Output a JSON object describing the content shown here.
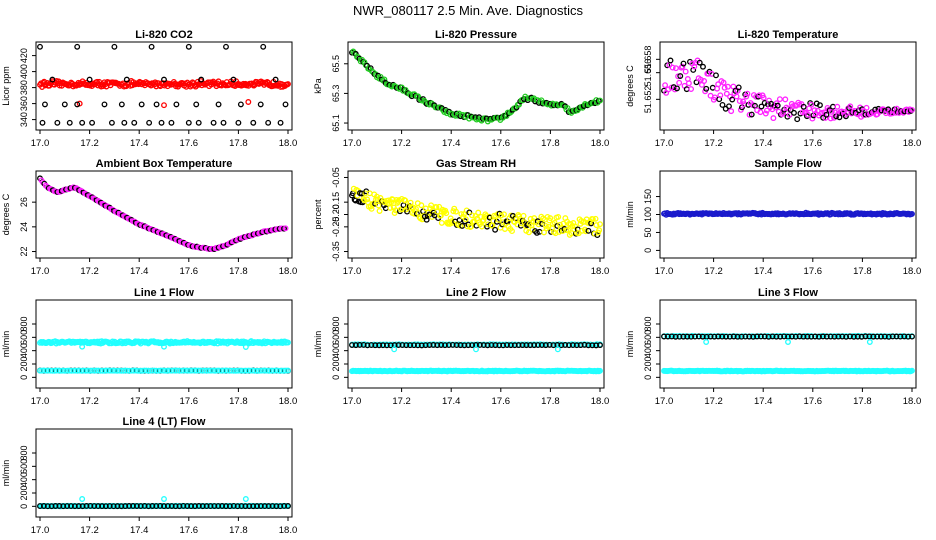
{
  "page_title": "NWR_080117  2.5 Min. Ave. Diagnostics",
  "colors": {
    "black": "#000000",
    "red": "#ff0000",
    "green": "#22cc22",
    "magenta": "#ff22ff",
    "yellow": "#ffff00",
    "blue": "#1a1acc",
    "cyan": "#22ffff"
  },
  "chart_data": [
    {
      "id": "li820-co2",
      "type": "scatter",
      "title": "Li-820 CO2",
      "ylabel": "Licor ppm",
      "xlim": [
        17.0,
        18.0
      ],
      "ylim": [
        332,
        432
      ],
      "xticks": [
        17.0,
        17.2,
        17.4,
        17.6,
        17.8,
        18.0
      ],
      "xtick_labels": [
        "17.0",
        "17.2",
        "17.4",
        "17.6",
        "17.8",
        "18.0"
      ],
      "yticks": [
        340,
        360,
        380,
        400,
        420
      ],
      "ytick_labels": [
        "340",
        "360",
        "380",
        "400",
        "420"
      ],
      "series": [
        {
          "name": "co2 band",
          "kind": "band",
          "color": "#ff0000",
          "x": [
            17.0,
            18.0
          ],
          "y_low": 382,
          "y_high": 387,
          "jitter": 1.5,
          "count": 240
        },
        {
          "name": "co2 outliers",
          "kind": "points",
          "color": "#ff0000",
          "x": [
            17.16,
            17.5,
            17.84
          ],
          "y": [
            360,
            358,
            362
          ]
        },
        {
          "name": "co2 black",
          "kind": "points",
          "color": "#000000",
          "x": [
            17.01,
            17.07,
            17.12,
            17.17,
            17.21,
            17.29,
            17.34,
            17.38,
            17.44,
            17.49,
            17.53,
            17.6,
            17.64,
            17.7,
            17.74,
            17.8,
            17.86,
            17.92,
            17.97,
            17.02,
            17.1,
            17.15,
            17.26,
            17.33,
            17.41,
            17.47,
            17.55,
            17.63,
            17.72,
            17.81,
            17.89,
            17.99,
            17.05,
            17.2,
            17.35,
            17.5,
            17.65,
            17.78,
            17.95,
            17.0,
            17.15,
            17.3,
            17.45,
            17.6,
            17.75,
            17.9
          ],
          "y": [
            336,
            336,
            336,
            336,
            336,
            336,
            336,
            336,
            336,
            336,
            336,
            336,
            336,
            336,
            336,
            336,
            336,
            336,
            336,
            359,
            359,
            359,
            359,
            359,
            359,
            359,
            359,
            359,
            359,
            359,
            359,
            359,
            390,
            390,
            390,
            390,
            390,
            390,
            390,
            431,
            431,
            431,
            431,
            431,
            431,
            431
          ]
        }
      ]
    },
    {
      "id": "li820-pressure",
      "type": "scatter",
      "title": "Li-820 Pressure",
      "ylabel": "kPa",
      "xlim": [
        17.0,
        18.0
      ],
      "ylim": [
        65.08,
        65.62
      ],
      "xticks": [
        17.0,
        17.2,
        17.4,
        17.6,
        17.8,
        18.0
      ],
      "xtick_labels": [
        "17.0",
        "17.2",
        "17.4",
        "17.6",
        "17.8",
        "18.0"
      ],
      "yticks": [
        65.1,
        65.3,
        65.5
      ],
      "ytick_labels": [
        "65.1",
        "65.3",
        "65.5"
      ],
      "series": [
        {
          "name": "pressure",
          "kind": "curve",
          "color": "#22cc22",
          "edge": "#000000",
          "jitter": 0.012,
          "count": 200,
          "x": [
            17.0,
            17.05,
            17.1,
            17.15,
            17.2,
            17.3,
            17.4,
            17.45,
            17.5,
            17.55,
            17.6,
            17.65,
            17.7,
            17.75,
            17.8,
            17.85,
            17.88,
            17.9,
            17.95,
            18.0
          ],
          "y": [
            65.58,
            65.5,
            65.42,
            65.36,
            65.33,
            65.24,
            65.16,
            65.15,
            65.13,
            65.12,
            65.13,
            65.19,
            65.27,
            65.25,
            65.22,
            65.23,
            65.17,
            65.19,
            65.23,
            65.25
          ]
        }
      ]
    },
    {
      "id": "li820-temperature",
      "type": "scatter",
      "title": "Li-820 Temperature",
      "ylabel": "degrees C",
      "xlim": [
        17.0,
        18.0
      ],
      "ylim": [
        51.648,
        51.66
      ],
      "xticks": [
        17.0,
        17.2,
        17.4,
        17.6,
        17.8,
        18.0
      ],
      "xtick_labels": [
        "17.0",
        "17.2",
        "17.4",
        "17.6",
        "17.8",
        "18.0"
      ],
      "yticks": [
        51.652,
        51.656,
        51.658
      ],
      "ytick_labels": [
        "51.652",
        "51.656",
        "51.658"
      ],
      "series": [
        {
          "name": "temperature",
          "kind": "curve",
          "color": "#ff22ff",
          "edge": "#000000",
          "count": 230,
          "jitter_start": 0.0028,
          "jitter_end": 0.0002,
          "x": [
            17.0,
            17.1,
            17.15,
            17.2,
            17.25,
            17.3,
            17.4,
            17.5,
            17.6,
            17.8,
            18.0
          ],
          "y": [
            51.655,
            51.656,
            51.656,
            51.654,
            51.6525,
            51.652,
            51.651,
            51.6505,
            51.6502,
            51.6501,
            51.6503
          ]
        }
      ]
    },
    {
      "id": "ambient-box-temperature",
      "type": "scatter",
      "title": "Ambient Box Temperature",
      "ylabel": "degrees C",
      "xlim": [
        17.0,
        18.0
      ],
      "ylim": [
        21.8,
        28.2
      ],
      "xticks": [
        17.0,
        17.2,
        17.4,
        17.6,
        17.8,
        18.0
      ],
      "xtick_labels": [
        "17.0",
        "17.2",
        "17.4",
        "17.6",
        "17.8",
        "18.0"
      ],
      "yticks": [
        22,
        24,
        26
      ],
      "ytick_labels": [
        "22",
        "24",
        "26"
      ],
      "series": [
        {
          "name": "ambient",
          "kind": "curve",
          "color": "#ff22ff",
          "edge": "#000000",
          "jitter": 0.03,
          "count": 170,
          "x": [
            17.0,
            17.03,
            17.07,
            17.1,
            17.14,
            17.2,
            17.3,
            17.4,
            17.5,
            17.6,
            17.65,
            17.7,
            17.75,
            17.8,
            17.9,
            17.99
          ],
          "y": [
            27.9,
            27.2,
            26.8,
            27.0,
            27.2,
            26.5,
            25.3,
            24.2,
            23.4,
            22.5,
            22.3,
            22.2,
            22.5,
            23.0,
            23.6,
            23.9
          ]
        }
      ]
    },
    {
      "id": "gas-stream-rh",
      "type": "scatter",
      "title": "Gas Stream RH",
      "ylabel": "percent",
      "xlim": [
        17.0,
        18.0
      ],
      "ylim": [
        -0.36,
        -0.04
      ],
      "xticks": [
        17.0,
        17.2,
        17.4,
        17.6,
        17.8,
        18.0
      ],
      "xtick_labels": [
        "17.0",
        "17.2",
        "17.4",
        "17.6",
        "17.8",
        "18.0"
      ],
      "yticks": [
        -0.35,
        -0.25,
        -0.2,
        -0.15,
        -0.05
      ],
      "ytick_labels": [
        "-0.35",
        "-0.25",
        "-0.20",
        "-0.15",
        "-0.05"
      ],
      "series": [
        {
          "name": "rh",
          "kind": "curve",
          "color": "#ffff00",
          "edge": "#000000",
          "jitter": 0.035,
          "count": 280,
          "black_ratio": 0.22,
          "x": [
            17.0,
            17.1,
            17.2,
            17.3,
            17.4,
            17.5,
            17.6,
            17.7,
            17.8,
            17.9,
            18.0
          ],
          "y": [
            -0.12,
            -0.15,
            -0.17,
            -0.19,
            -0.21,
            -0.22,
            -0.23,
            -0.24,
            -0.24,
            -0.25,
            -0.25
          ]
        }
      ]
    },
    {
      "id": "sample-flow",
      "type": "scatter",
      "title": "Sample Flow",
      "ylabel": "ml/min",
      "xlim": [
        17.0,
        18.0
      ],
      "ylim": [
        -10,
        210
      ],
      "xticks": [
        17.0,
        17.2,
        17.4,
        17.6,
        17.8,
        18.0
      ],
      "xtick_labels": [
        "17.0",
        "17.2",
        "17.4",
        "17.6",
        "17.8",
        "18.0"
      ],
      "yticks": [
        0,
        50,
        100,
        150
      ],
      "ytick_labels": [
        "0",
        "50",
        "100",
        "150"
      ],
      "series": [
        {
          "name": "sample",
          "kind": "band",
          "color": "#1a1acc",
          "edge": "#000000",
          "x": [
            17.0,
            18.0
          ],
          "y_low": 100,
          "y_high": 104,
          "jitter": 1.0,
          "count": 230
        }
      ]
    },
    {
      "id": "line1-flow",
      "type": "scatter",
      "title": "Line 1 Flow",
      "ylabel": "ml/min",
      "xlim": [
        17.0,
        18.0
      ],
      "ylim": [
        -100,
        1100
      ],
      "xticks": [
        17.0,
        17.2,
        17.4,
        17.6,
        17.8,
        18.0
      ],
      "xtick_labels": [
        "17.0",
        "17.2",
        "17.4",
        "17.6",
        "17.8",
        "18.0"
      ],
      "yticks": [
        0,
        200,
        400,
        600,
        800
      ],
      "ytick_labels": [
        "0",
        "200",
        "400",
        "600",
        "800"
      ],
      "series": [
        {
          "name": "line1 cyan",
          "kind": "band",
          "color": "#22ffff",
          "x": [
            17.0,
            18.0
          ],
          "y_low": 510,
          "y_high": 540,
          "jitter": 6,
          "count": 230
        },
        {
          "name": "line1 cyan low",
          "kind": "points",
          "color": "#22ffff",
          "x": [
            17.17,
            17.5,
            17.83
          ],
          "y": [
            460,
            460,
            455
          ]
        },
        {
          "name": "line1 black",
          "kind": "band",
          "color": "#000000",
          "x": [
            17.0,
            18.0
          ],
          "y_low": 100,
          "y_high": 100,
          "jitter": 3,
          "count": 65,
          "hollow": true
        },
        {
          "name": "line1 cyan base",
          "kind": "band",
          "color": "#22ffff",
          "x": [
            17.0,
            18.0
          ],
          "y_low": 100,
          "y_high": 100,
          "jitter": 2,
          "count": 120
        }
      ]
    },
    {
      "id": "line2-flow",
      "type": "scatter",
      "title": "Line 2 Flow",
      "ylabel": "ml/min",
      "xlim": [
        17.0,
        18.0
      ],
      "ylim": [
        -100,
        1100
      ],
      "xticks": [
        17.0,
        17.2,
        17.4,
        17.6,
        17.8,
        18.0
      ],
      "xtick_labels": [
        "17.0",
        "17.2",
        "17.4",
        "17.6",
        "17.8",
        "18.0"
      ],
      "yticks": [
        0,
        200,
        400,
        600,
        800
      ],
      "ytick_labels": [
        "0",
        "200",
        "400",
        "600",
        "800"
      ],
      "series": [
        {
          "name": "line2 cyan base",
          "kind": "band",
          "color": "#22ffff",
          "x": [
            17.0,
            18.0
          ],
          "y_low": 90,
          "y_high": 100,
          "jitter": 2,
          "count": 230
        },
        {
          "name": "line2 cyan top",
          "kind": "band",
          "color": "#22ffff",
          "x": [
            17.0,
            18.0
          ],
          "y_low": 490,
          "y_high": 495,
          "jitter": 3,
          "count": 80
        },
        {
          "name": "line2 black",
          "kind": "band",
          "color": "#000000",
          "x": [
            17.0,
            18.0
          ],
          "y_low": 480,
          "y_high": 485,
          "jitter": 3,
          "count": 65,
          "hollow": true
        },
        {
          "name": "line2 cyan low",
          "kind": "points",
          "color": "#22ffff",
          "x": [
            17.17,
            17.5,
            17.83
          ],
          "y": [
            420,
            420,
            420
          ]
        }
      ]
    },
    {
      "id": "line3-flow",
      "type": "scatter",
      "title": "Line 3 Flow",
      "ylabel": "ml/min",
      "xlim": [
        17.0,
        18.0
      ],
      "ylim": [
        -100,
        1100
      ],
      "xticks": [
        17.0,
        17.2,
        17.4,
        17.6,
        17.8,
        18.0
      ],
      "xtick_labels": [
        "17.0",
        "17.2",
        "17.4",
        "17.6",
        "17.8",
        "18.0"
      ],
      "yticks": [
        0,
        200,
        400,
        600,
        800
      ],
      "ytick_labels": [
        "0",
        "200",
        "400",
        "600",
        "800"
      ],
      "series": [
        {
          "name": "line3 cyan base",
          "kind": "band",
          "color": "#22ffff",
          "x": [
            17.0,
            18.0
          ],
          "y_low": 90,
          "y_high": 100,
          "jitter": 2,
          "count": 230
        },
        {
          "name": "line3 cyan top",
          "kind": "band",
          "color": "#22ffff",
          "x": [
            17.0,
            18.0
          ],
          "y_low": 615,
          "y_high": 620,
          "jitter": 3,
          "count": 80
        },
        {
          "name": "line3 black",
          "kind": "band",
          "color": "#000000",
          "x": [
            17.0,
            18.0
          ],
          "y_low": 610,
          "y_high": 612,
          "jitter": 3,
          "count": 65,
          "hollow": true
        },
        {
          "name": "line3 cyan low",
          "kind": "points",
          "color": "#22ffff",
          "x": [
            17.17,
            17.5,
            17.83
          ],
          "y": [
            530,
            530,
            530
          ]
        }
      ]
    },
    {
      "id": "line4-lt-flow",
      "type": "scatter",
      "title": "Line 4 (LT) Flow",
      "ylabel": "ml/min",
      "xlim": [
        17.0,
        18.0
      ],
      "ylim": [
        -100,
        1100
      ],
      "xticks": [
        17.0,
        17.2,
        17.4,
        17.6,
        17.8,
        18.0
      ],
      "xtick_labels": [
        "17.0",
        "17.2",
        "17.4",
        "17.6",
        "17.8",
        "18.0"
      ],
      "yticks": [
        0,
        200,
        400,
        600,
        800
      ],
      "ytick_labels": [
        "0",
        "200",
        "400",
        "600",
        "800"
      ],
      "series": [
        {
          "name": "line4 cyan base",
          "kind": "band",
          "color": "#22ffff",
          "x": [
            17.0,
            18.0
          ],
          "y_low": 2,
          "y_high": 6,
          "jitter": 2,
          "count": 230
        },
        {
          "name": "line4 black",
          "kind": "band",
          "color": "#000000",
          "x": [
            17.0,
            18.0
          ],
          "y_low": 4,
          "y_high": 4,
          "jitter": 2,
          "count": 65,
          "hollow": true
        },
        {
          "name": "line4 cyan high",
          "kind": "points",
          "color": "#22ffff",
          "x": [
            17.17,
            17.5,
            17.83
          ],
          "y": [
            110,
            110,
            110
          ]
        }
      ]
    }
  ]
}
